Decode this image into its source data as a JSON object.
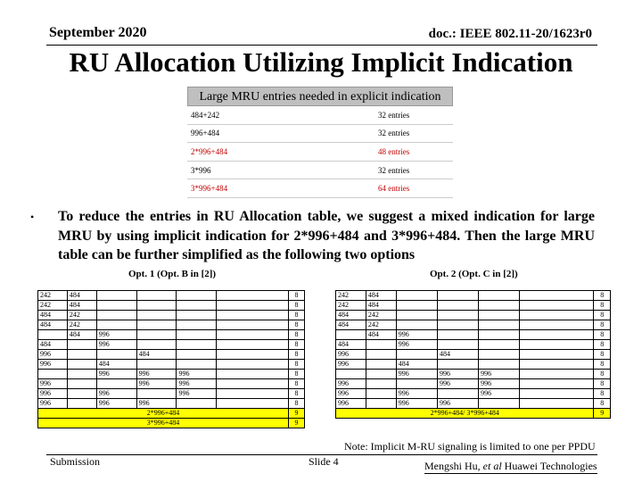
{
  "header": {
    "date": "September 2020",
    "doc": "doc.: IEEE 802.11-20/1623r0"
  },
  "title": "RU Allocation Utilizing Implicit Indication",
  "mru_table": {
    "heading": "Large MRU entries needed in explicit indication",
    "rows": [
      {
        "label": "484+242",
        "entries": "32 entries",
        "highlight": false
      },
      {
        "label": "996+484",
        "entries": "32 entries",
        "highlight": false
      },
      {
        "label": "2*996+484",
        "entries": "48 entries",
        "highlight": true
      },
      {
        "label": "3*996",
        "entries": "32 entries",
        "highlight": false
      },
      {
        "label": "3*996+484",
        "entries": "64 entries",
        "highlight": true
      }
    ]
  },
  "bullet_symbol": "•",
  "paragraph": "To reduce the entries in RU Allocation table, we suggest a mixed indication for large MRU by using implicit indication for 2*996+484 and 3*996+484. Then the large MRU table can be further simplified as the following two options",
  "option1": {
    "title": "Opt. 1 (Opt. B in [2])",
    "rows": [
      {
        "cells": [
          "242",
          "484",
          "",
          "",
          "",
          ""
        ],
        "count": "8"
      },
      {
        "cells": [
          "242",
          "484",
          "",
          "",
          "",
          ""
        ],
        "count": "8"
      },
      {
        "cells": [
          "484",
          "242",
          "",
          "",
          "",
          ""
        ],
        "count": "8"
      },
      {
        "cells": [
          "484",
          "242",
          "",
          "",
          "",
          ""
        ],
        "count": "8"
      },
      {
        "cells": [
          "",
          "484",
          "996",
          "",
          "",
          ""
        ],
        "count": "8"
      },
      {
        "cells": [
          "484",
          "",
          "996",
          "",
          "",
          ""
        ],
        "count": "8"
      },
      {
        "cells": [
          "996",
          "",
          "",
          "484",
          "",
          ""
        ],
        "count": "8"
      },
      {
        "cells": [
          "996",
          "",
          "484",
          "",
          "",
          ""
        ],
        "count": "8"
      },
      {
        "cells": [
          "",
          "",
          "996",
          "996",
          "996",
          ""
        ],
        "count": "8"
      },
      {
        "cells": [
          "996",
          "",
          "",
          "996",
          "996",
          ""
        ],
        "count": "8"
      },
      {
        "cells": [
          "996",
          "",
          "996",
          "",
          "996",
          ""
        ],
        "count": "8"
      },
      {
        "cells": [
          "996",
          "",
          "996",
          "996",
          "",
          ""
        ],
        "count": "8"
      }
    ],
    "yellow_rows": [
      {
        "label": "2*996+484",
        "count": "9"
      },
      {
        "label": "3*996+484",
        "count": "9"
      }
    ]
  },
  "option2": {
    "title": "Opt. 2 (Opt. C in [2])",
    "rows": [
      {
        "cells": [
          "242",
          "484",
          "",
          "",
          "",
          ""
        ],
        "count": "8"
      },
      {
        "cells": [
          "242",
          "484",
          "",
          "",
          "",
          ""
        ],
        "count": "8"
      },
      {
        "cells": [
          "484",
          "242",
          "",
          "",
          "",
          ""
        ],
        "count": "8"
      },
      {
        "cells": [
          "484",
          "242",
          "",
          "",
          "",
          ""
        ],
        "count": "8"
      },
      {
        "cells": [
          "",
          "484",
          "996",
          "",
          "",
          ""
        ],
        "count": "8"
      },
      {
        "cells": [
          "484",
          "",
          "996",
          "",
          "",
          ""
        ],
        "count": "8"
      },
      {
        "cells": [
          "996",
          "",
          "",
          "484",
          "",
          ""
        ],
        "count": "8"
      },
      {
        "cells": [
          "996",
          "",
          "484",
          "",
          "",
          ""
        ],
        "count": "8"
      },
      {
        "cells": [
          "",
          "",
          "996",
          "996",
          "996",
          ""
        ],
        "count": "8"
      },
      {
        "cells": [
          "996",
          "",
          "",
          "996",
          "996",
          ""
        ],
        "count": "8"
      },
      {
        "cells": [
          "996",
          "",
          "996",
          "",
          "996",
          ""
        ],
        "count": "8"
      },
      {
        "cells": [
          "996",
          "",
          "996",
          "996",
          "",
          ""
        ],
        "count": "8"
      }
    ],
    "yellow_rows": [
      {
        "label": "2*996+484/ 3*996+484",
        "count": "9"
      }
    ]
  },
  "note": "Note: Implicit M-RU signaling is limited to one per PPDU",
  "footer": {
    "submission": "Submission",
    "slide": "Slide 4",
    "author_prefix": "Mengshi Hu, ",
    "author_etal": "et al",
    "author_suffix": " Huawei Technologies"
  }
}
